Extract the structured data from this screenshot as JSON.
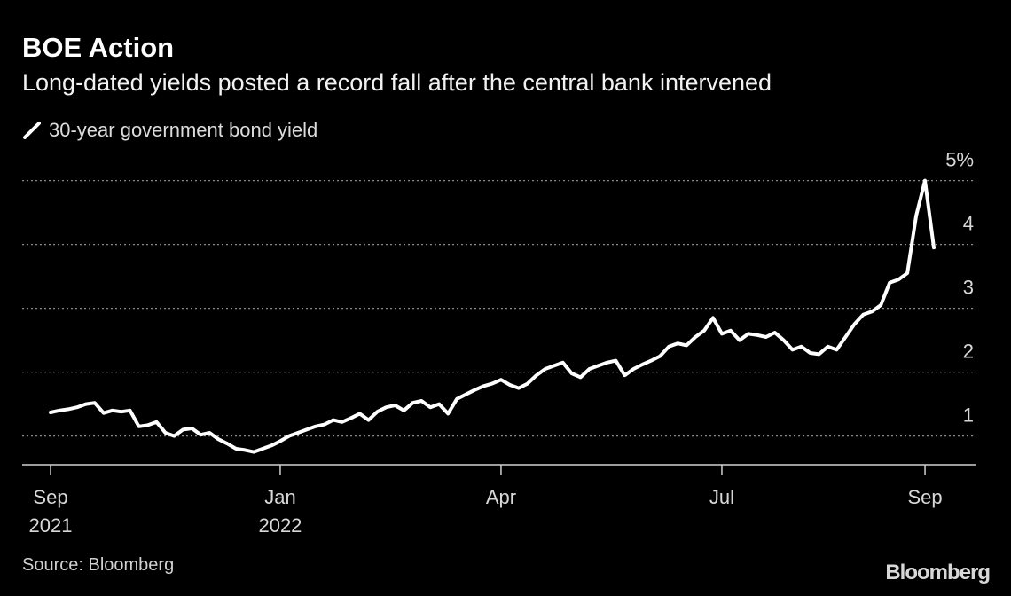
{
  "chart_data": {
    "type": "line",
    "title": "BOE Action",
    "subtitle": "Long-dated yields posted a record fall after the central bank intervened",
    "source": "Source: Bloomberg",
    "brand": "Bloomberg",
    "x": [
      "2021-09",
      "2021-09",
      "2021-09",
      "2021-09",
      "2021-09",
      "2021-09",
      "2021-09",
      "2021-10",
      "2021-10",
      "2021-10",
      "2021-10",
      "2021-10",
      "2021-10",
      "2021-10",
      "2021-11",
      "2021-11",
      "2021-11",
      "2021-11",
      "2021-11",
      "2021-11",
      "2021-12",
      "2021-12",
      "2021-12",
      "2021-12",
      "2021-12",
      "2021-12",
      "2022-01",
      "2022-01",
      "2022-01",
      "2022-01",
      "2022-01",
      "2022-01",
      "2022-01",
      "2022-01",
      "2022-02",
      "2022-02",
      "2022-02",
      "2022-02",
      "2022-02",
      "2022-02",
      "2022-02",
      "2022-02",
      "2022-03",
      "2022-03",
      "2022-03",
      "2022-03",
      "2022-03",
      "2022-03",
      "2022-03",
      "2022-03",
      "2022-03",
      "2022-04",
      "2022-04",
      "2022-04",
      "2022-04",
      "2022-04",
      "2022-04",
      "2022-04",
      "2022-04",
      "2022-05",
      "2022-05",
      "2022-05",
      "2022-05",
      "2022-05",
      "2022-05",
      "2022-05",
      "2022-05",
      "2022-06",
      "2022-06",
      "2022-06",
      "2022-06",
      "2022-06",
      "2022-06",
      "2022-06",
      "2022-06",
      "2022-06",
      "2022-07",
      "2022-07",
      "2022-07",
      "2022-07",
      "2022-07",
      "2022-07",
      "2022-07",
      "2022-07",
      "2022-07",
      "2022-07",
      "2022-07",
      "2022-08",
      "2022-08",
      "2022-08",
      "2022-08",
      "2022-08",
      "2022-08",
      "2022-08",
      "2022-08",
      "2022-08",
      "2022-08",
      "2022-08",
      "2022-08",
      "2022-09",
      "2022-09"
    ],
    "series": [
      {
        "name": "30-year government bond yield",
        "color": "#ffffff",
        "values": [
          1.37,
          1.4,
          1.42,
          1.45,
          1.5,
          1.52,
          1.36,
          1.4,
          1.38,
          1.4,
          1.15,
          1.17,
          1.22,
          1.05,
          1.0,
          1.1,
          1.12,
          1.02,
          1.05,
          0.95,
          0.88,
          0.8,
          0.78,
          0.75,
          0.8,
          0.85,
          0.92,
          1.0,
          1.05,
          1.1,
          1.15,
          1.18,
          1.25,
          1.22,
          1.28,
          1.35,
          1.25,
          1.38,
          1.45,
          1.48,
          1.4,
          1.52,
          1.55,
          1.45,
          1.5,
          1.35,
          1.58,
          1.65,
          1.72,
          1.78,
          1.82,
          1.88,
          1.8,
          1.75,
          1.82,
          1.95,
          2.05,
          2.1,
          2.15,
          1.98,
          1.92,
          2.05,
          2.1,
          2.15,
          2.18,
          1.95,
          2.05,
          2.12,
          2.18,
          2.25,
          2.4,
          2.45,
          2.42,
          2.55,
          2.65,
          2.85,
          2.6,
          2.65,
          2.5,
          2.6,
          2.58,
          2.55,
          2.62,
          2.5,
          2.35,
          2.4,
          2.3,
          2.28,
          2.4,
          2.35,
          2.55,
          2.75,
          2.9,
          2.95,
          3.05,
          3.4,
          3.45,
          3.55,
          4.45,
          5.0,
          3.95
        ]
      }
    ],
    "xticks": [
      {
        "value": "2021-09",
        "label": "Sep\n2021"
      },
      {
        "value": "2022-01",
        "label": "Jan\n2022"
      },
      {
        "value": "2022-04",
        "label": "Apr"
      },
      {
        "value": "2022-07",
        "label": "Jul"
      },
      {
        "value": "2022-09",
        "label": "Sep"
      }
    ],
    "ylim": [
      0.55,
      5.25
    ],
    "yticks": [
      1,
      2,
      3,
      4,
      {
        "value": 5,
        "label": "5%"
      }
    ],
    "grid": true
  }
}
